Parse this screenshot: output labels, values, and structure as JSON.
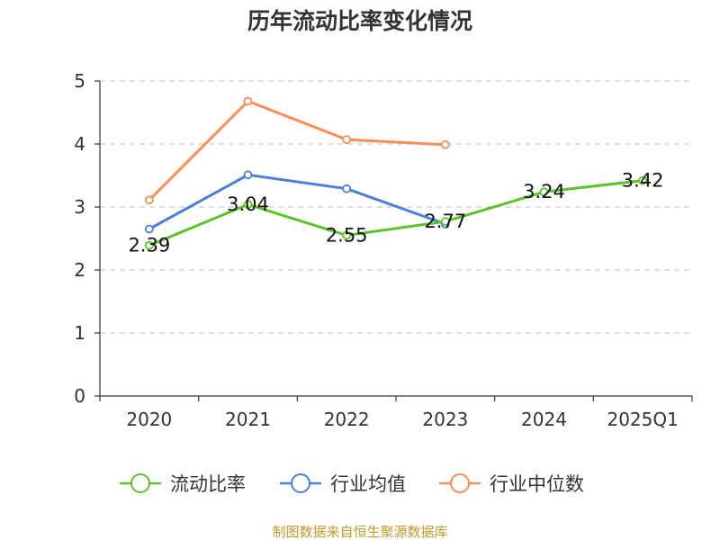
{
  "chart_data": {
    "type": "line",
    "title": "历年流动比率变化情况",
    "categories": [
      "2020",
      "2021",
      "2022",
      "2023",
      "2024",
      "2025Q1"
    ],
    "ylim": [
      0,
      5
    ],
    "yticks": [
      0,
      1,
      2,
      3,
      4,
      5
    ],
    "grid": true,
    "legend_position": "bottom",
    "series": [
      {
        "name": "流动比率",
        "color": "#5cc328",
        "values": [
          2.39,
          3.04,
          2.55,
          2.77,
          3.24,
          3.42
        ],
        "labels": [
          "2.39",
          "3.04",
          "2.55",
          "2.77",
          "3.24",
          "3.42"
        ]
      },
      {
        "name": "行业均值",
        "color": "#4a7fdb",
        "values": [
          2.65,
          3.51,
          3.29,
          2.73,
          null,
          null
        ]
      },
      {
        "name": "行业中位数",
        "color": "#f88e5a",
        "values": [
          3.11,
          4.68,
          4.07,
          3.99,
          null,
          null
        ]
      }
    ]
  },
  "source_text": "制图数据来自恒生聚源数据库"
}
